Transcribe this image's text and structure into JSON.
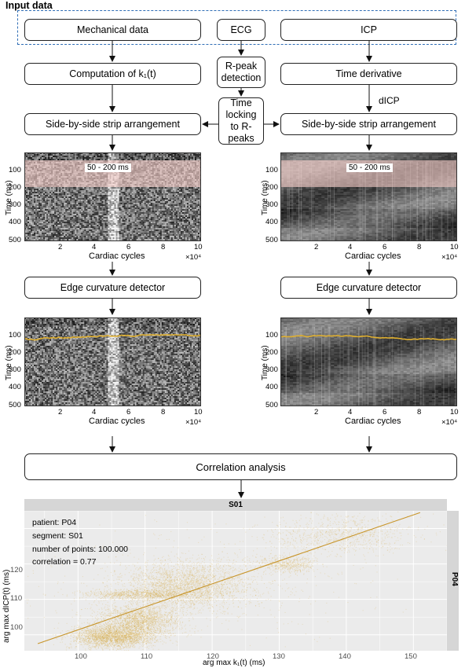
{
  "section_title": "Input data",
  "boxes": {
    "mech": "Mechanical data",
    "ecg": "ECG",
    "icp": "ICP",
    "k1": "Computation of k₁(t)",
    "rpeak": "R-peak detection",
    "deriv": "Time derivative",
    "timelock": "Time locking to R-peaks",
    "strip_left": "Side-by-side strip arrangement",
    "strip_right": "Side-by-side strip arrangement",
    "edge_left": "Edge curvature detector",
    "edge_right": "Edge curvature detector",
    "corr": "Correlation analysis"
  },
  "dicp_label": "dICP",
  "heatmap": {
    "band_label": "50 - 200 ms",
    "ylabel": "Time (ms)",
    "xlabel": "Cardiac cycles",
    "exponent": "×10⁴",
    "yticks": [
      "100",
      "200",
      "300",
      "400",
      "500"
    ],
    "xticks": [
      "2",
      "4",
      "6",
      "8",
      "10"
    ]
  },
  "scatter": {
    "facet_top": "S01",
    "facet_right": "P04",
    "xlabel": "arg max k₁(t) (ms)",
    "ylabel": "arg max dICP(t) (ms)",
    "info": {
      "patient": "patient: P04",
      "segment": "segment: S01",
      "points": "number of points: 100.000",
      "correlation": "correlation = 0.77"
    },
    "xticks": [
      "100",
      "110",
      "120",
      "130",
      "140",
      "150"
    ],
    "yticks": [
      "100",
      "110",
      "120"
    ]
  },
  "chart_data": {
    "type": "scatter",
    "x_range": [
      92,
      155
    ],
    "y_range": [
      95.5,
      135
    ],
    "regression_line": [
      [
        94,
        97.5
      ],
      [
        151,
        134.5
      ]
    ],
    "correlation": 0.77,
    "clusters": [
      {
        "x": 105,
        "y": 99.5,
        "sx": 3.0,
        "sy": 1.6,
        "n": 2600
      },
      {
        "x": 109,
        "y": 104,
        "sx": 3.0,
        "sy": 2.4,
        "n": 2200
      },
      {
        "x": 116,
        "y": 114,
        "sx": 4.5,
        "sy": 3.2,
        "n": 2600
      },
      {
        "x": 109,
        "y": 111.5,
        "sx": 4.0,
        "sy": 0.7,
        "n": 900
      },
      {
        "x": 131,
        "y": 120,
        "sx": 2.2,
        "sy": 1.2,
        "n": 500
      },
      {
        "x": 139,
        "y": 128.5,
        "sx": 5.5,
        "sy": 2.8,
        "n": 900
      },
      {
        "x": 118,
        "y": 115,
        "sx": 12,
        "sy": 7,
        "n": 700
      }
    ],
    "colors": {
      "points": "#d8aa3a",
      "line": "#c8952a",
      "panel": "#ebebeb",
      "strip": "#d6d6d6"
    }
  }
}
